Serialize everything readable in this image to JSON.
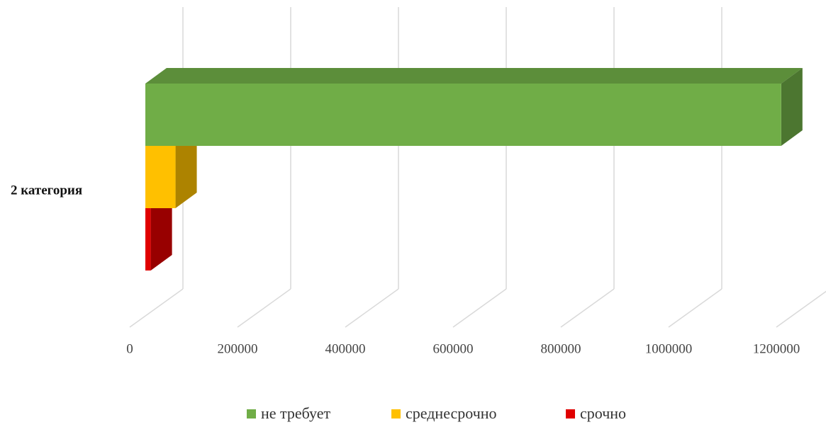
{
  "chart_data": {
    "type": "bar3d_horizontal",
    "categories": [
      "2 категория"
    ],
    "series": [
      {
        "name": "не требует",
        "color": "#70ad47",
        "values": [
          1180000
        ]
      },
      {
        "name": "среднесрочно",
        "color": "#ffc000",
        "values": [
          56000
        ]
      },
      {
        "name": "срочно",
        "color": "#e00000",
        "values": [
          10000
        ]
      }
    ],
    "xlim": [
      0,
      1200000
    ],
    "xticks": [
      0,
      200000,
      400000,
      600000,
      800000,
      1000000,
      1200000
    ],
    "grid": true,
    "legend": "bottom"
  }
}
